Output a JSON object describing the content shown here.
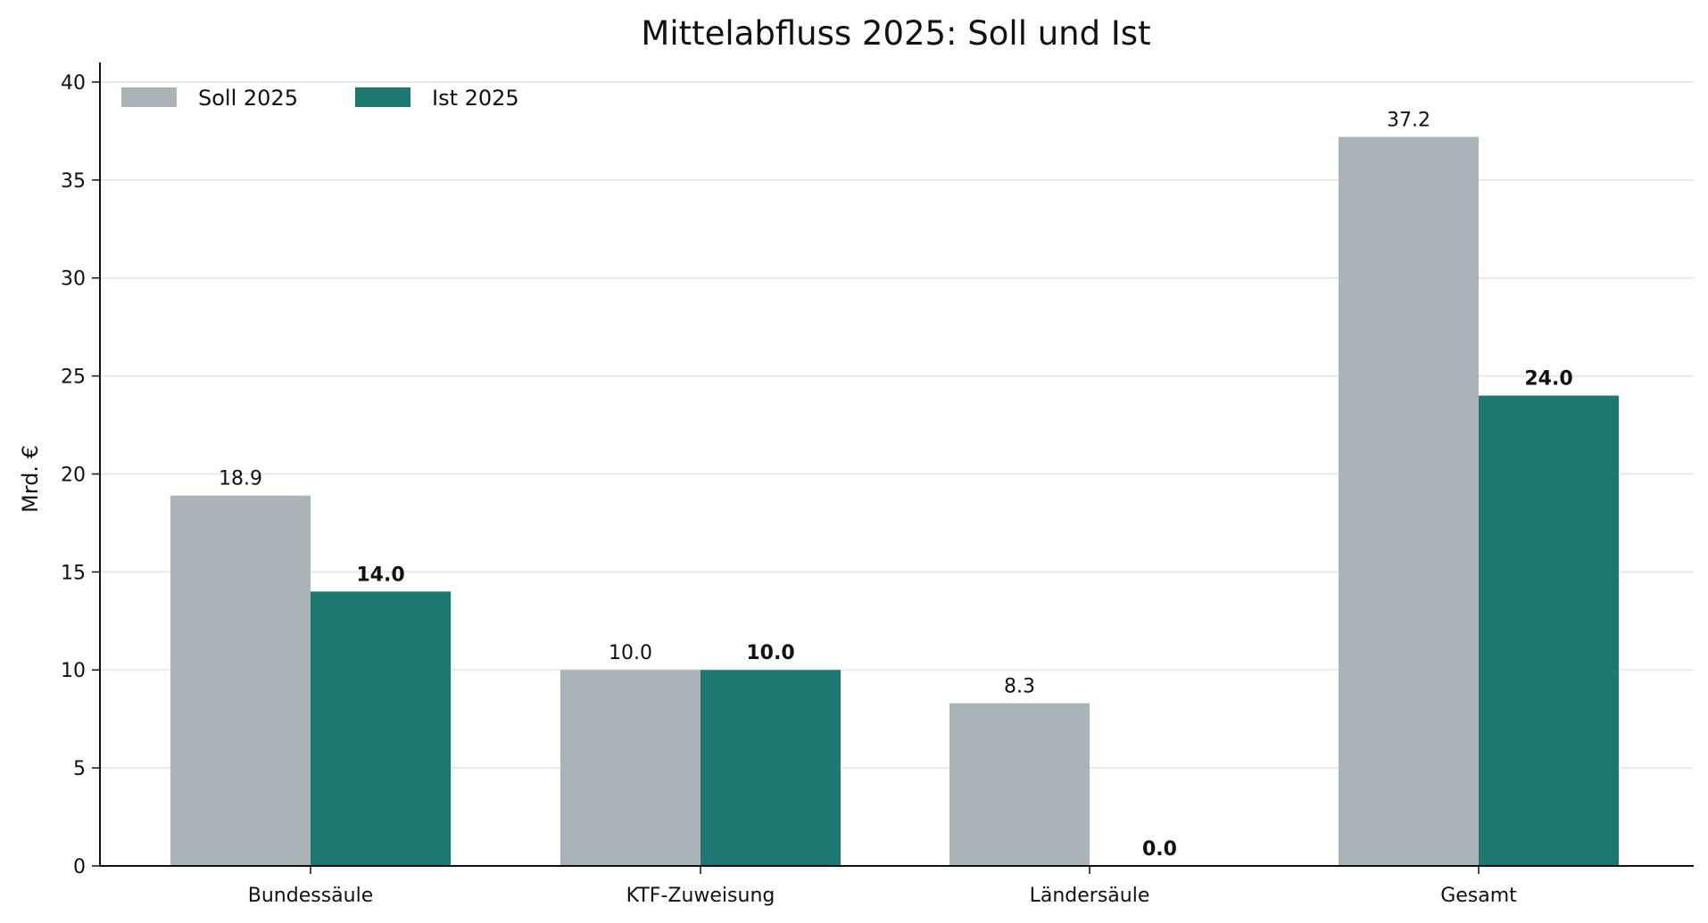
{
  "chart_data": {
    "type": "bar",
    "title": "Mittelabfluss 2025: Soll und Ist",
    "xlabel": "",
    "ylabel": "Mrd. €",
    "ylim": [
      0,
      41
    ],
    "yticks": [
      0,
      5,
      10,
      15,
      20,
      25,
      30,
      35,
      40
    ],
    "grid": "horizontal",
    "legend_position": "top-left",
    "categories": [
      "Bundessäule",
      "KTF-Zuweisung",
      "Ländersäule",
      "Gesamt"
    ],
    "series": [
      {
        "name": "Soll 2025",
        "color": "#a9b3b8",
        "values": [
          18.9,
          10.0,
          8.3,
          37.2
        ],
        "labels": [
          "18.9",
          "10.0",
          "8.3",
          "37.2"
        ],
        "label_bold": false
      },
      {
        "name": "Ist 2025",
        "color": "#1e7872",
        "values": [
          14.0,
          10.0,
          0.0,
          24.0
        ],
        "labels": [
          "14.0",
          "10.0",
          "0.0",
          "24.0"
        ],
        "label_bold": true
      }
    ]
  }
}
